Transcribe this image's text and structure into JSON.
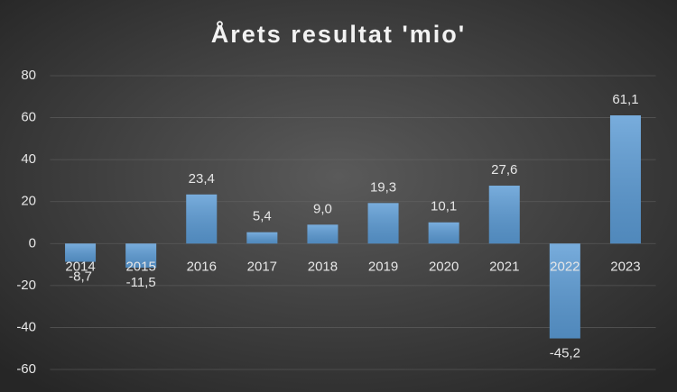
{
  "chart_data": {
    "type": "bar",
    "title": "Årets resultat 'mio'",
    "categories": [
      "2014",
      "2015",
      "2016",
      "2017",
      "2018",
      "2019",
      "2020",
      "2021",
      "2022",
      "2023"
    ],
    "values": [
      -8.7,
      -11.5,
      23.4,
      5.4,
      9.0,
      19.3,
      10.1,
      27.6,
      -45.2,
      61.1
    ],
    "value_labels": [
      "-8,7",
      "-11,5",
      "23,4",
      "5,4",
      "9,0",
      "19,3",
      "10,1",
      "27,6",
      "-45,2",
      "61,1"
    ],
    "color": "#5b9bd5",
    "ylim": [
      -60,
      80
    ],
    "yticks": [
      -60,
      -40,
      -20,
      0,
      20,
      40,
      60,
      80
    ],
    "grid": true
  }
}
